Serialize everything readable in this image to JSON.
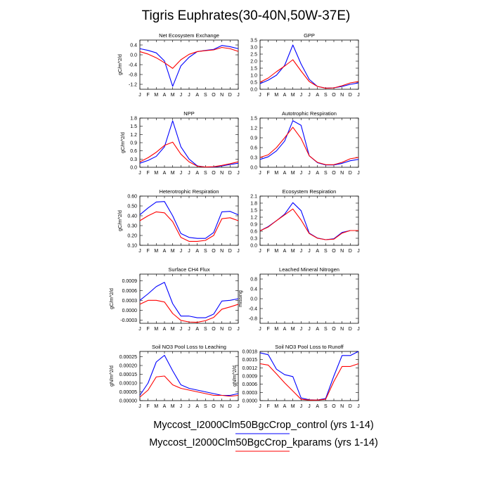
{
  "figure_title": "Tigris Euphrates(30-40N,50W-37E)",
  "months": [
    "J",
    "F",
    "M",
    "A",
    "M",
    "J",
    "J",
    "A",
    "S",
    "O",
    "N",
    "D",
    "J"
  ],
  "series_colors": {
    "control": "#0000ff",
    "kparams": "#ff0000"
  },
  "legend": [
    {
      "label": "Myccost_I2000Clm50BgcCrop_control (yrs 1-14)",
      "color": "#0000ff"
    },
    {
      "label": "Myccost_I2000Clm50BgcCrop_kparams (yrs 1-14)",
      "color": "#ff0000"
    }
  ],
  "chart_data": [
    {
      "type": "line",
      "title": "Net Ecosystem Exchange",
      "ylabel": "gC/m^2/d",
      "ylim": [
        -1.4,
        0.6
      ],
      "yticks": [
        -1.2,
        -0.8,
        -0.4,
        0.0,
        0.4
      ],
      "ytick_labels": [
        "-1.2",
        "-0.8",
        "-0.4",
        "0.0",
        "0.4"
      ],
      "x": [
        "J",
        "F",
        "M",
        "A",
        "M",
        "J",
        "J",
        "A",
        "S",
        "O",
        "N",
        "D",
        "J"
      ],
      "series": [
        {
          "key": "control",
          "values": [
            0.25,
            0.18,
            0.08,
            -0.25,
            -1.28,
            -0.45,
            -0.1,
            0.13,
            0.18,
            0.22,
            0.38,
            0.33,
            0.25
          ]
        },
        {
          "key": "kparams",
          "values": [
            0.13,
            0.03,
            -0.12,
            -0.32,
            -0.55,
            -0.2,
            0.02,
            0.13,
            0.17,
            0.2,
            0.3,
            0.25,
            0.14
          ]
        }
      ]
    },
    {
      "type": "line",
      "title": "GPP",
      "ylabel": "",
      "ylim": [
        0.0,
        3.5
      ],
      "yticks": [
        0.0,
        0.5,
        1.0,
        1.5,
        2.0,
        2.5,
        3.0,
        3.5
      ],
      "ytick_labels": [
        "0.0",
        "0.5",
        "1.0",
        "1.5",
        "2.0",
        "2.5",
        "3.0",
        "3.5"
      ],
      "x": [
        "J",
        "F",
        "M",
        "A",
        "M",
        "J",
        "J",
        "A",
        "S",
        "O",
        "N",
        "D",
        "J"
      ],
      "series": [
        {
          "key": "control",
          "values": [
            0.4,
            0.65,
            1.0,
            1.7,
            3.15,
            1.8,
            0.7,
            0.2,
            0.08,
            0.1,
            0.2,
            0.35,
            0.45
          ]
        },
        {
          "key": "kparams",
          "values": [
            0.5,
            0.8,
            1.25,
            1.65,
            2.1,
            1.3,
            0.55,
            0.2,
            0.08,
            0.1,
            0.25,
            0.45,
            0.55
          ]
        }
      ]
    },
    {
      "type": "line",
      "title": "NPP",
      "ylabel": "gC/m^2/d",
      "ylim": [
        0.0,
        1.8
      ],
      "yticks": [
        0.0,
        0.3,
        0.6,
        0.9,
        1.2,
        1.5,
        1.8
      ],
      "ytick_labels": [
        "0.0",
        "0.3",
        "0.6",
        "0.9",
        "1.2",
        "1.5",
        "1.8"
      ],
      "x": [
        "J",
        "F",
        "M",
        "A",
        "M",
        "J",
        "J",
        "A",
        "S",
        "O",
        "N",
        "D",
        "J"
      ],
      "series": [
        {
          "key": "control",
          "values": [
            0.15,
            0.25,
            0.4,
            0.75,
            1.7,
            0.75,
            0.3,
            0.05,
            0.01,
            0.01,
            0.05,
            0.1,
            0.15
          ]
        },
        {
          "key": "kparams",
          "values": [
            0.2,
            0.35,
            0.55,
            0.8,
            0.92,
            0.48,
            0.2,
            0.04,
            0.01,
            0.02,
            0.07,
            0.13,
            0.2
          ]
        }
      ]
    },
    {
      "type": "line",
      "title": "Autotrophic Respiration",
      "ylabel": "",
      "ylim": [
        0.0,
        1.5
      ],
      "yticks": [
        0.0,
        0.3,
        0.6,
        0.9,
        1.2,
        1.5
      ],
      "ytick_labels": [
        "0.0",
        "0.3",
        "0.6",
        "0.9",
        "1.2",
        "1.5"
      ],
      "x": [
        "J",
        "F",
        "M",
        "A",
        "M",
        "J",
        "J",
        "A",
        "S",
        "O",
        "N",
        "D",
        "J"
      ],
      "series": [
        {
          "key": "control",
          "values": [
            0.24,
            0.32,
            0.5,
            0.8,
            1.42,
            1.28,
            0.35,
            0.14,
            0.07,
            0.07,
            0.12,
            0.2,
            0.24
          ]
        },
        {
          "key": "kparams",
          "values": [
            0.3,
            0.38,
            0.6,
            0.9,
            1.22,
            0.88,
            0.35,
            0.15,
            0.08,
            0.08,
            0.15,
            0.26,
            0.3
          ]
        }
      ]
    },
    {
      "type": "line",
      "title": "Heterotrophic Respiration",
      "ylabel": "gC/m^2/d",
      "ylim": [
        0.1,
        0.6
      ],
      "yticks": [
        0.1,
        0.2,
        0.3,
        0.4,
        0.5,
        0.6
      ],
      "ytick_labels": [
        "0.10",
        "0.20",
        "0.30",
        "0.40",
        "0.50",
        "0.60"
      ],
      "x": [
        "J",
        "F",
        "M",
        "A",
        "M",
        "J",
        "J",
        "A",
        "S",
        "O",
        "N",
        "D",
        "J"
      ],
      "series": [
        {
          "key": "control",
          "values": [
            0.41,
            0.48,
            0.54,
            0.545,
            0.4,
            0.22,
            0.18,
            0.17,
            0.17,
            0.23,
            0.44,
            0.445,
            0.41
          ]
        },
        {
          "key": "kparams",
          "values": [
            0.35,
            0.4,
            0.44,
            0.43,
            0.34,
            0.18,
            0.14,
            0.14,
            0.15,
            0.2,
            0.37,
            0.38,
            0.35
          ]
        }
      ]
    },
    {
      "type": "line",
      "title": "Ecosystem Respiration",
      "ylabel": "",
      "ylim": [
        0.0,
        2.1
      ],
      "yticks": [
        0.0,
        0.3,
        0.6,
        0.9,
        1.2,
        1.5,
        1.8,
        2.1
      ],
      "ytick_labels": [
        "0.0",
        "0.3",
        "0.6",
        "0.9",
        "1.2",
        "1.5",
        "1.8",
        "2.1"
      ],
      "x": [
        "J",
        "F",
        "M",
        "A",
        "M",
        "J",
        "J",
        "A",
        "S",
        "O",
        "N",
        "D",
        "J"
      ],
      "series": [
        {
          "key": "control",
          "values": [
            0.62,
            0.8,
            1.05,
            1.33,
            1.82,
            1.48,
            0.52,
            0.31,
            0.24,
            0.28,
            0.55,
            0.63,
            0.63
          ]
        },
        {
          "key": "kparams",
          "values": [
            0.62,
            0.78,
            1.05,
            1.3,
            1.55,
            1.08,
            0.5,
            0.3,
            0.24,
            0.26,
            0.52,
            0.63,
            0.63
          ]
        }
      ]
    },
    {
      "type": "line",
      "title": "Surface CH4 Flux",
      "ylabel": "gC/m^2/d",
      "ylim": [
        -0.0004,
        0.0011
      ],
      "yticks": [
        -0.0003,
        0.0,
        0.0003,
        0.0006,
        0.0009
      ],
      "ytick_labels": [
        "-0.0003",
        "0.0000",
        "0.0003",
        "0.0006",
        "0.0009"
      ],
      "x": [
        "J",
        "F",
        "M",
        "A",
        "M",
        "J",
        "J",
        "A",
        "S",
        "O",
        "N",
        "D",
        "J"
      ],
      "series": [
        {
          "key": "control",
          "values": [
            0.0003,
            0.0005,
            0.00072,
            0.00085,
            0.0002,
            -0.00018,
            -0.00018,
            -0.00023,
            -0.00023,
            -0.00012,
            0.00028,
            0.0003,
            0.00035
          ]
        },
        {
          "key": "kparams",
          "values": [
            0.00018,
            0.0003,
            0.0003,
            0.00025,
            -0.0001,
            -0.00031,
            -0.00036,
            -0.00037,
            -0.00032,
            -0.00022,
            3e-05,
            0.0001,
            0.00018
          ]
        }
      ]
    },
    {
      "type": "line",
      "title": "Leached Mineral Nitrogen",
      "ylabel": "missing",
      "ylim": [
        -1.0,
        1.0
      ],
      "yticks": [
        -0.8,
        -0.4,
        0.0,
        0.4,
        0.8
      ],
      "ytick_labels": [
        "-0.8",
        "-0.4",
        "0.0",
        "0.4",
        "0.8"
      ],
      "x": [
        "J",
        "F",
        "M",
        "A",
        "M",
        "J",
        "J",
        "A",
        "S",
        "O",
        "N",
        "D",
        "J"
      ],
      "series": []
    },
    {
      "type": "line",
      "title": "Soil NO3 Pool Loss to Leaching",
      "ylabel": "gN/m^2/d",
      "ylim": [
        0.0,
        0.00028
      ],
      "yticks": [
        0.0,
        5e-05,
        0.0001,
        0.00015,
        0.0002,
        0.00025
      ],
      "ytick_labels": [
        "0.00000",
        "0.00005",
        "0.00010",
        "0.00015",
        "0.00020",
        "0.00025"
      ],
      "x": [
        "J",
        "F",
        "M",
        "A",
        "M",
        "J",
        "J",
        "A",
        "S",
        "O",
        "N",
        "D",
        "J"
      ],
      "series": [
        {
          "key": "control",
          "values": [
            3e-05,
            0.0001,
            0.00022,
            0.000258,
            0.00017,
            9e-05,
            7e-05,
            6e-05,
            5e-05,
            4e-05,
            3e-05,
            3e-05,
            4e-05
          ]
        },
        {
          "key": "kparams",
          "values": [
            2e-05,
            6e-05,
            0.000135,
            0.00014,
            9e-05,
            7e-05,
            6e-05,
            5e-05,
            4e-05,
            3e-05,
            3e-05,
            2.5e-05,
            3e-05
          ]
        }
      ]
    },
    {
      "type": "line",
      "title": "Soil NO3 Pool Loss to Runoff",
      "ylabel": "gN/m^2/d",
      "ylim": [
        0.0,
        0.0018
      ],
      "yticks": [
        0.0,
        0.0003,
        0.0006,
        0.0009,
        0.0012,
        0.0015,
        0.0018
      ],
      "ytick_labels": [
        "0.0000",
        "0.0003",
        "0.0006",
        "0.0009",
        "0.0012",
        "0.0015",
        "0.0018"
      ],
      "x": [
        "J",
        "F",
        "M",
        "A",
        "M",
        "J",
        "J",
        "A",
        "S",
        "O",
        "N",
        "D",
        "J"
      ],
      "series": [
        {
          "key": "control",
          "values": [
            0.00175,
            0.00168,
            0.00115,
            0.00095,
            0.00088,
            0.0001,
            3e-05,
            2e-05,
            8e-05,
            0.0009,
            0.00165,
            0.00165,
            0.0018
          ]
        },
        {
          "key": "kparams",
          "values": [
            0.00135,
            0.0013,
            0.00098,
            0.00065,
            0.00035,
            5e-05,
            2e-05,
            2e-05,
            5e-05,
            0.0007,
            0.00125,
            0.00125,
            0.00135
          ]
        }
      ]
    }
  ]
}
